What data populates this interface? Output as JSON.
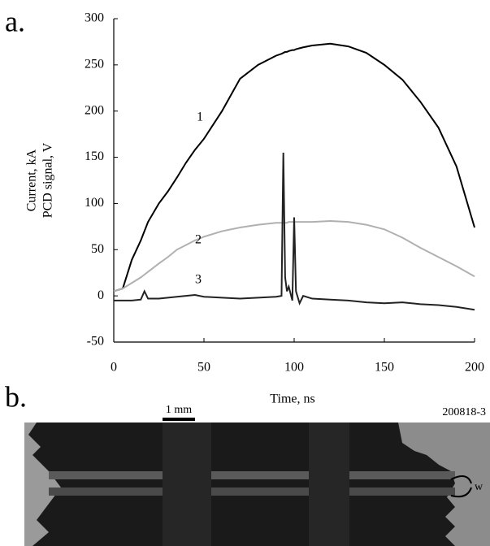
{
  "chart_data": {
    "type": "line",
    "x_label": "Time, ns",
    "y_label": [
      "Current, kA",
      "PCD signal, V"
    ],
    "xlim": [
      0,
      200
    ],
    "xticks": [
      0,
      50,
      100,
      150,
      200
    ],
    "ylim": [
      -50,
      300
    ],
    "yticks": [
      -50,
      0,
      50,
      100,
      150,
      200,
      250,
      300
    ],
    "grid": false,
    "x": [
      0,
      5,
      10,
      15,
      17,
      19,
      25,
      30,
      35,
      40,
      45,
      50,
      60,
      70,
      80,
      90,
      93,
      94,
      95,
      96,
      97,
      99,
      100,
      101,
      103,
      105,
      110,
      120,
      130,
      140,
      150,
      160,
      170,
      180,
      190,
      200
    ],
    "series": [
      {
        "name": "1",
        "color": "#000000",
        "values": [
          5,
          8,
          39,
          60,
          70,
          80,
          100,
          113,
          128,
          144,
          158,
          170,
          200,
          235,
          250,
          260,
          262,
          263,
          264,
          264,
          265,
          266,
          266,
          267,
          268,
          269,
          271,
          273,
          270,
          263,
          250,
          234,
          210,
          182,
          140,
          74
        ]
      },
      {
        "name": "2",
        "color": "#b0b0b0",
        "values": [
          5,
          8,
          14,
          20,
          23,
          26,
          35,
          42,
          50,
          55,
          60,
          64,
          70,
          74,
          77,
          79,
          79,
          79,
          79,
          79,
          80,
          80,
          80,
          80,
          80,
          80,
          80,
          81,
          80,
          77,
          72,
          63,
          52,
          42,
          32,
          21
        ]
      },
      {
        "name": "3",
        "color": "#222222",
        "values": [
          -5,
          -5,
          -5,
          -4,
          5,
          -3,
          -3,
          -2,
          -1,
          0,
          1,
          -1,
          -2,
          -3,
          -2,
          -1,
          0,
          155,
          20,
          5,
          10,
          -5,
          85,
          5,
          -8,
          0,
          -3,
          -4,
          -5,
          -7,
          -8,
          -7,
          -9,
          -10,
          -12,
          -15
        ]
      }
    ]
  },
  "panel_labels": [
    "a.",
    "b."
  ],
  "panel_b": {
    "scale_label": "1 mm",
    "shot_id": "200818-3",
    "feature_label": "w"
  }
}
